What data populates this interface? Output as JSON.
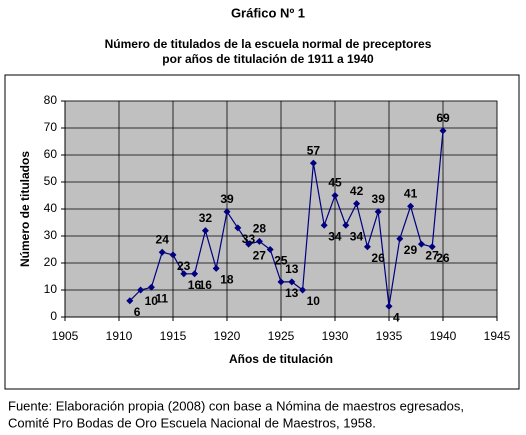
{
  "chart_data": {
    "type": "line",
    "title": "Gráfico Nº 1",
    "subtitle": [
      "Número de titulados de la escuela normal de preceptores",
      "por años de titulación de 1911 a 1940"
    ],
    "x_label": "Años de titulación",
    "y_label": "Número de titulados",
    "x": [
      1911,
      1912,
      1913,
      1914,
      1915,
      1916,
      1917,
      1918,
      1919,
      1920,
      1921,
      1922,
      1923,
      1924,
      1925,
      1926,
      1927,
      1928,
      1929,
      1930,
      1931,
      1932,
      1933,
      1934,
      1935,
      1936,
      1937,
      1938,
      1939,
      1940
    ],
    "values": [
      6,
      10,
      11,
      24,
      23,
      16,
      16,
      32,
      18,
      39,
      33,
      27,
      28,
      25,
      13,
      13,
      10,
      57,
      34,
      45,
      34,
      42,
      26,
      39,
      4,
      29,
      41,
      27,
      26,
      69
    ],
    "color": "#000080",
    "xlim": [
      1905,
      1945
    ],
    "xticks": [
      1905,
      1910,
      1915,
      1920,
      1925,
      1930,
      1935,
      1940,
      1945
    ],
    "ylim": [
      0,
      80
    ],
    "yticks": [
      0,
      10,
      20,
      30,
      40,
      50,
      60,
      70,
      80
    ],
    "grid": true,
    "source": [
      "Fuente: Elaboración propia (2008) con base a Nómina de maestros egresados,",
      "Comité Pro Bodas de Oro Escuela Nacional de Maestros, 1958."
    ]
  }
}
